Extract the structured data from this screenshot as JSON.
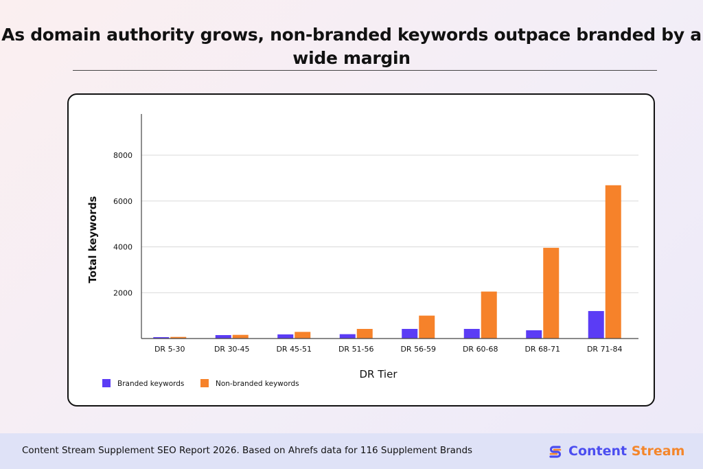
{
  "title": "As domain authority grows, non-branded keywords outpace branded by a wide margin",
  "footer": {
    "source_text": "Content Stream Supplement SEO Report 2026. Based on Ahrefs data for 116 Supplement Brands",
    "brand_word_1": "Content",
    "brand_word_2": " Stream",
    "brand_icon": "content-stream-logo-icon"
  },
  "colors": {
    "branded": "#5b3cf5",
    "non_branded": "#f6822a",
    "brand_primary": "#4b4df0",
    "brand_accent": "#f4862b"
  },
  "chart_data": {
    "type": "bar",
    "title": "",
    "xlabel": "DR Tier",
    "ylabel": "Total keywords",
    "ylim": [
      0,
      9800
    ],
    "yticks": [
      2000,
      4000,
      6000,
      8000
    ],
    "grid": true,
    "legend": "bottom-left",
    "categories": [
      "DR 5-30",
      "DR 30-45",
      "DR 45-51",
      "DR 51-56",
      "DR 56-59",
      "DR 60-68",
      "DR 68-71",
      "DR 71-84"
    ],
    "series": [
      {
        "name": "Branded keywords",
        "color": "#5b3cf5",
        "values": [
          60,
          150,
          180,
          190,
          420,
          420,
          360,
          1200
        ]
      },
      {
        "name": "Non-branded keywords",
        "color": "#f6822a",
        "values": [
          70,
          160,
          290,
          420,
          1000,
          2050,
          3960,
          6690
        ]
      }
    ]
  }
}
